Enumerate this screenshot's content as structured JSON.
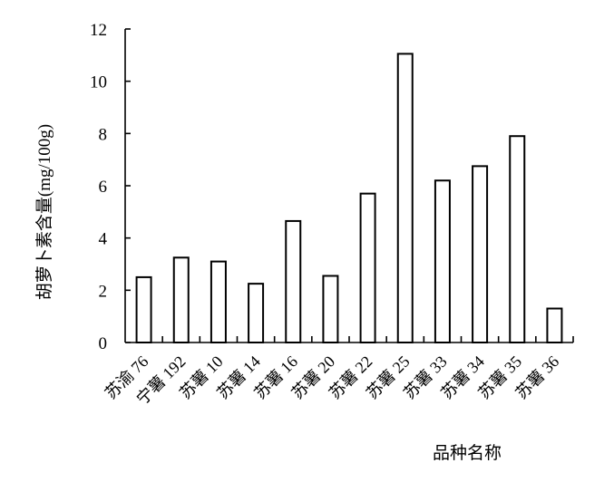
{
  "chart_data": {
    "type": "bar",
    "title": "",
    "xlabel": "品种名称",
    "ylabel": "胡萝卜素含量(mg/100g)",
    "ylim": [
      0,
      12
    ],
    "yticks": [
      0,
      2,
      4,
      6,
      8,
      10,
      12
    ],
    "grid": false,
    "legend": "none",
    "categories": [
      "苏渝 76",
      "宁薯 192",
      "苏薯 10",
      "苏薯 14",
      "苏薯 16",
      "苏薯 20",
      "苏薯 22",
      "苏薯 25",
      "苏薯 33",
      "苏薯 34",
      "苏薯 35",
      "苏薯 36"
    ],
    "values": [
      2.5,
      3.25,
      3.1,
      2.25,
      4.65,
      2.55,
      5.7,
      11.05,
      6.2,
      6.75,
      7.9,
      1.3
    ],
    "bar_fill": "#ffffff",
    "bar_stroke": "#000000"
  }
}
